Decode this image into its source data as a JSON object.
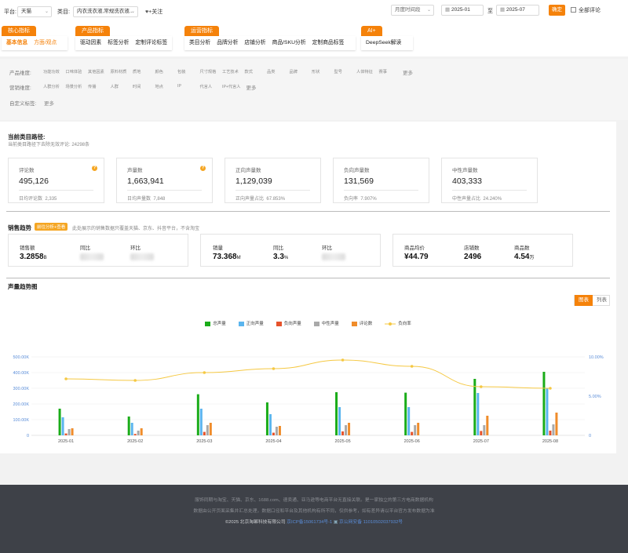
{
  "filter_bar": {
    "platform_label": "平台:",
    "platform_value": "天猫",
    "category_label": "类目:",
    "category_value": "内衣洗衣液,常规洗衣液...",
    "follow_label": "+关注",
    "period_value": "月度时间段",
    "date_start": "2025-01",
    "date_sep": "至",
    "date_end": "2025-07",
    "confirm_label": "确定",
    "all_reviews_label": "全部评论"
  },
  "nav_groups": [
    {
      "title": "核心指标",
      "items": [
        "基本信息",
        "方面/观点"
      ]
    },
    {
      "title": "产品指标",
      "items": [
        "驱动因素",
        "标签分析",
        "定制评论标签"
      ]
    },
    {
      "title": "运营指标",
      "items": [
        "类目分析",
        "品牌分析",
        "店铺分析",
        "商品/SKU分析",
        "定制商品标签"
      ]
    },
    {
      "title": "AI+",
      "items": [
        "DeepSeek解读"
      ]
    }
  ],
  "filters": {
    "product_label": "产品维度:",
    "product_tags": [
      "功能功效",
      "口味体验",
      "其他因素",
      "原料材质",
      "质地",
      "颜色",
      "包装",
      "尺寸规格",
      "工艺技术",
      "款式",
      "品类",
      "品牌",
      "形状",
      "型号",
      "人体特征",
      "赛事"
    ],
    "marketing_label": "营销维度:",
    "marketing_tags": [
      "人群分析",
      "场景分析",
      "传播",
      "人群",
      "时间",
      "地点",
      "IP",
      "代言人",
      "IP+代言人"
    ],
    "custom_label": "自定义标签:",
    "more_label": "更多"
  },
  "path": {
    "title": "当前类目路径:",
    "subtitle": "当前类目路径下去除无效评论: 24298条"
  },
  "metric_cards": [
    {
      "label": "评论数",
      "value": "495,126",
      "foot_label": "日均评论数",
      "foot_value": "2,335",
      "help": true
    },
    {
      "label": "声量数",
      "value": "1,663,941",
      "foot_label": "日均声量数",
      "foot_value": "7,848",
      "help": true
    },
    {
      "label": "正向声量数",
      "value": "1,129,039",
      "foot_label": "正向声量占比",
      "foot_value": "67.853%",
      "help": false
    },
    {
      "label": "负向声量数",
      "value": "131,569",
      "foot_label": "负向率",
      "foot_value": "7.907%",
      "help": false
    },
    {
      "label": "中性声量数",
      "value": "403,333",
      "foot_label": "中性声量占比",
      "foot_value": "24.240%",
      "help": false
    }
  ],
  "sales": {
    "title": "销售趋势",
    "badge": "前往分析+查看",
    "note": "此处展示的销售数据只覆盖天猫、京东、抖音平台，不含淘宝",
    "card1": {
      "label1": "销售额",
      "value1": "3.2858",
      "unit1": "B",
      "label2": "同比",
      "label3": "环比"
    },
    "card2": {
      "label1": "销量",
      "value1": "73.368",
      "unit1": "M",
      "label2": "同比",
      "value2": "3.3",
      "unit2": "%",
      "label3": "环比"
    },
    "card3": {
      "label1": "商品均价",
      "value1": "¥44.79",
      "label2": "店铺数",
      "value2": "2496",
      "label3": "商品数",
      "value3": "4.54",
      "unit3": "万"
    }
  },
  "trend": {
    "title": "声量趋势图",
    "toggle_chart": "图表",
    "toggle_list": "列表"
  },
  "chart_data": {
    "type": "bar",
    "categories": [
      "2025-01",
      "2025-02",
      "2025-03",
      "2025-04",
      "2025-05",
      "2025-06",
      "2025-07",
      "2025-08"
    ],
    "series": [
      {
        "name": "总声量",
        "color": "#1aac19",
        "values": [
          170000,
          120000,
          262000,
          210000,
          275000,
          272000,
          360000,
          405000
        ]
      },
      {
        "name": "正向声量",
        "color": "#5ab5ee",
        "values": [
          115000,
          80000,
          170000,
          135000,
          180000,
          180000,
          270000,
          300000
        ]
      },
      {
        "name": "负向声量",
        "color": "#e6532b",
        "values": [
          12000,
          9000,
          22000,
          17000,
          25000,
          22000,
          28000,
          30000
        ]
      },
      {
        "name": "中性声量",
        "color": "#a9a9a9",
        "values": [
          40000,
          30000,
          65000,
          55000,
          65000,
          65000,
          65000,
          70000
        ]
      },
      {
        "name": "评论数",
        "color": "#f08c2a",
        "values": [
          45000,
          45000,
          80000,
          60000,
          80000,
          80000,
          125000,
          145000
        ]
      }
    ],
    "line_series": {
      "name": "负向率",
      "color": "#f5c842",
      "values": [
        7.2,
        7.0,
        8.0,
        8.5,
        9.6,
        8.8,
        6.2,
        6.0
      ]
    },
    "y_left_ticks": [
      "0",
      "100.00K",
      "200.00K",
      "300.00K",
      "400.00K",
      "500.00K"
    ],
    "y_right_ticks": [
      "0",
      "5.00%",
      "10.00%"
    ],
    "ylim_left": [
      0,
      500000
    ],
    "ylim_right": [
      0,
      10
    ],
    "legend": "top-center"
  },
  "footer": {
    "line1": "服饰同期与淘宝、天猫、京东、1688.com、速卖通、亚马逊等电商平台无直接关联。是一家独立的第三方电商数据机构",
    "line2": "数据由公开页面采集并汇总处理，数据口径和平台及其他机构有所不同，仅供参考，如有差异请以平台官方发布数据为准",
    "copyright": "©2025 北京淘幂科技有限公司",
    "icp": "京ICP备15061734号-1",
    "police": "京公网安备 11010502037932号"
  },
  "colors": {
    "accent": "#f5820a",
    "footer_bg": "#3e4148"
  }
}
